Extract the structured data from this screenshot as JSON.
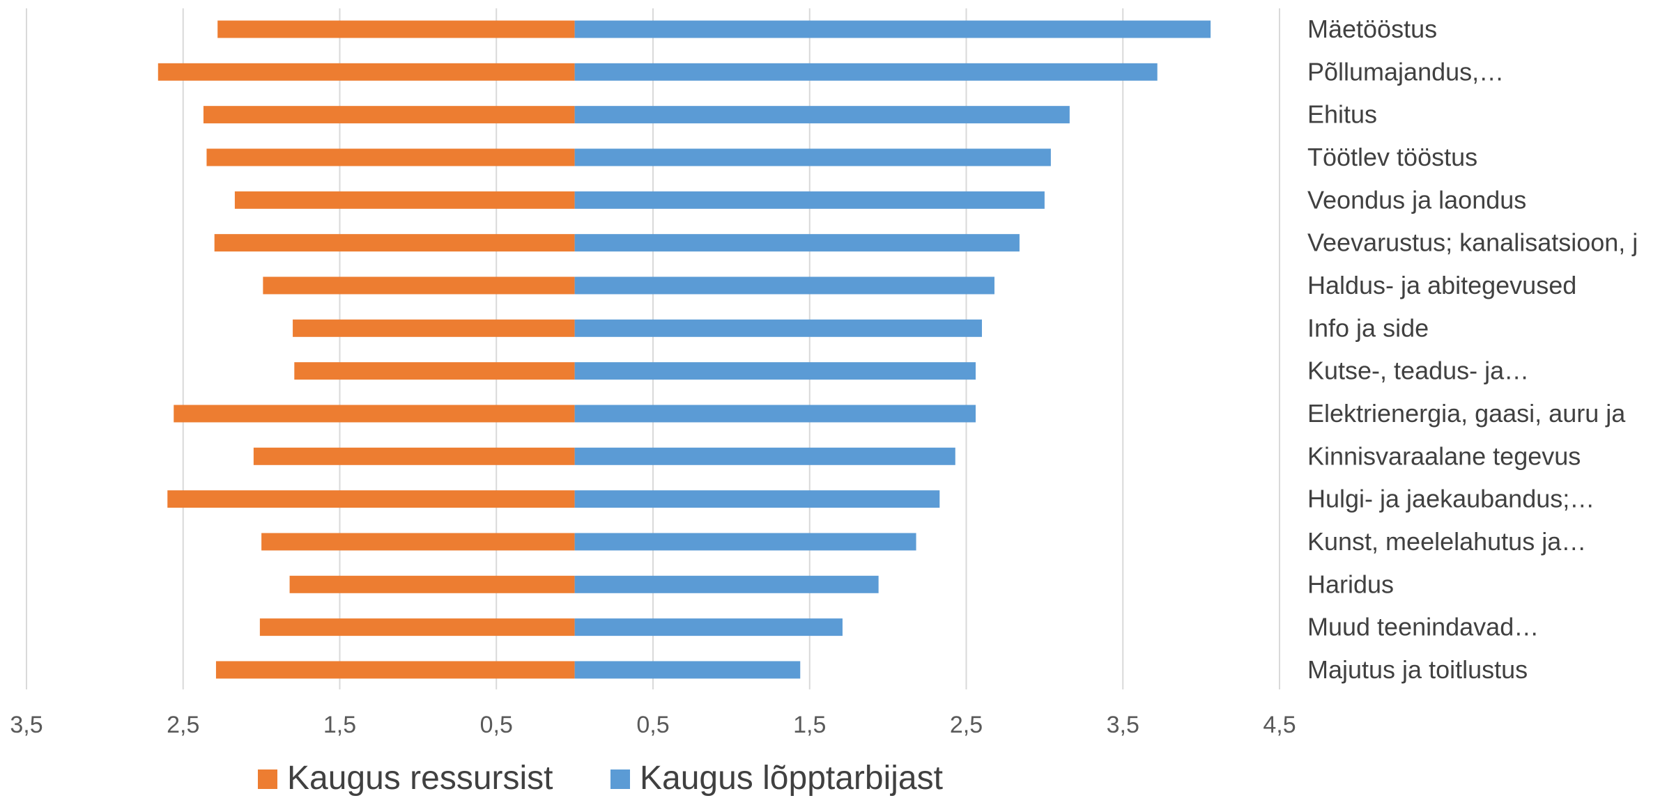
{
  "chart_data": {
    "type": "bar",
    "orientation": "horizontal-diverging",
    "categories": [
      "Mäetööstus",
      "Põllumajandus,…",
      "Ehitus",
      "Töötlev tööstus",
      "Veondus ja laondus",
      "Veevarustus; kanalisatsioon, j",
      "Haldus- ja abitegevused",
      "Info ja side",
      "Kutse-, teadus- ja…",
      "Elektrienergia, gaasi, auru ja",
      "Kinnisvaraalane tegevus",
      "Hulgi- ja jaekaubandus;…",
      "Kunst, meelelahutus ja…",
      "Haridus",
      "Muud teenindavad…",
      "Majutus ja toitlustus"
    ],
    "series": [
      {
        "name": "Kaugus ressursist",
        "color": "#ED7D31",
        "direction": "left",
        "values": [
          2.28,
          2.66,
          2.37,
          2.35,
          2.17,
          2.3,
          1.99,
          1.8,
          1.79,
          2.56,
          2.05,
          2.6,
          2.0,
          1.82,
          2.01,
          2.29
        ]
      },
      {
        "name": "Kaugus lõpptarbijast",
        "color": "#5B9BD5",
        "direction": "right",
        "values": [
          4.06,
          3.72,
          3.16,
          3.04,
          3.0,
          2.84,
          2.68,
          2.6,
          2.56,
          2.56,
          2.43,
          2.33,
          2.18,
          1.94,
          1.71,
          1.44
        ]
      }
    ],
    "x_ticks": [
      {
        "value": -3.5,
        "label": "3,5"
      },
      {
        "value": -2.5,
        "label": "2,5"
      },
      {
        "value": -1.5,
        "label": "1,5"
      },
      {
        "value": -0.5,
        "label": "0,5"
      },
      {
        "value": 0.5,
        "label": "0,5"
      },
      {
        "value": 1.5,
        "label": "1,5"
      },
      {
        "value": 2.5,
        "label": "2,5"
      },
      {
        "value": 3.5,
        "label": "3,5"
      },
      {
        "value": 4.5,
        "label": "4,5"
      }
    ],
    "xlim": [
      -3.5,
      4.5
    ],
    "grid": "vertical",
    "legend_position": "bottom",
    "title": "",
    "xlabel": "",
    "ylabel": ""
  }
}
